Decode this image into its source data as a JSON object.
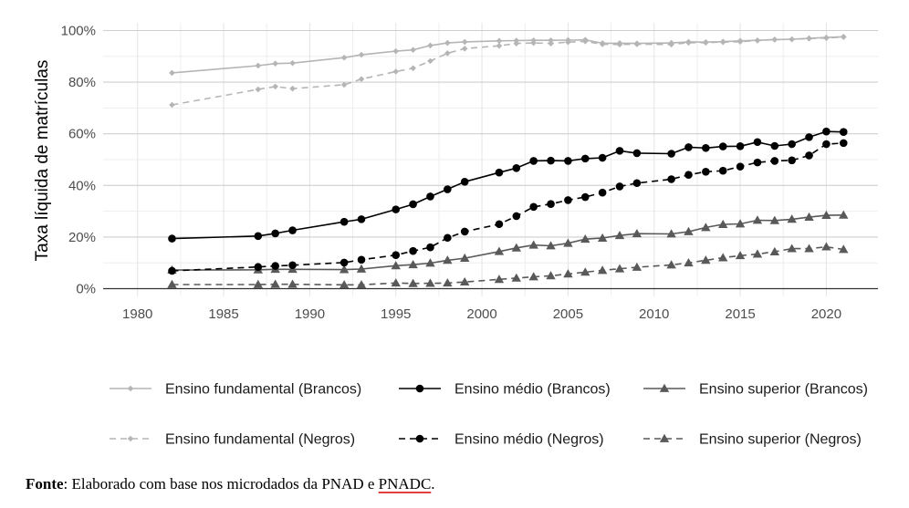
{
  "chart_data": {
    "type": "line",
    "title": "",
    "xlabel": "",
    "ylabel": "Taxa líquida de matrículas",
    "xlim": [
      1978,
      2023
    ],
    "ylim": [
      -3,
      103
    ],
    "xticks": [
      1980,
      1985,
      1990,
      1995,
      2000,
      2005,
      2010,
      2015,
      2020
    ],
    "yticks": [
      0,
      20,
      40,
      60,
      80,
      100
    ],
    "ytick_labels": [
      "0%",
      "20%",
      "40%",
      "60%",
      "80%",
      "100%"
    ],
    "legend_position": "bottom",
    "series": [
      {
        "name": "Ensino fundamental (Brancos)",
        "color": "#b5b5b5",
        "dash": "solid",
        "marker": "diamond",
        "x": [
          1982,
          1987,
          1988,
          1989,
          1992,
          1993,
          1995,
          1996,
          1997,
          1998,
          1999,
          2001,
          2002,
          2003,
          2004,
          2005,
          2006,
          2007,
          2008,
          2009,
          2011,
          2012,
          2013,
          2014,
          2015,
          2016,
          2017,
          2018,
          2019,
          2020,
          2021
        ],
        "y": [
          83.6,
          86.4,
          87.2,
          87.4,
          89.5,
          90.6,
          92.0,
          92.5,
          94.2,
          95.2,
          95.6,
          96.0,
          96.1,
          96.2,
          96.2,
          96.3,
          96.4,
          95.1,
          95.1,
          95.0,
          95.2,
          95.6,
          95.5,
          95.7,
          96.0,
          96.2,
          96.5,
          96.6,
          97.0,
          97.3,
          97.6
        ]
      },
      {
        "name": "Ensino médio (Brancos)",
        "color": "#000000",
        "dash": "solid",
        "marker": "circle",
        "x": [
          1982,
          1987,
          1988,
          1989,
          1992,
          1993,
          1995,
          1996,
          1997,
          1998,
          1999,
          2001,
          2002,
          2003,
          2004,
          2005,
          2006,
          2007,
          2008,
          2009,
          2011,
          2012,
          2013,
          2014,
          2015,
          2016,
          2017,
          2018,
          2019,
          2020,
          2021
        ],
        "y": [
          19.4,
          20.4,
          21.4,
          22.6,
          25.9,
          26.9,
          30.7,
          32.7,
          35.7,
          38.5,
          41.4,
          45.0,
          46.7,
          49.5,
          49.6,
          49.5,
          50.4,
          50.7,
          53.4,
          52.5,
          52.3,
          54.8,
          54.5,
          55.1,
          55.2,
          56.8,
          55.3,
          56.0,
          58.7,
          60.9,
          60.7
        ]
      },
      {
        "name": "Ensino superior (Brancos)",
        "color": "#595959",
        "dash": "solid",
        "marker": "triangle",
        "x": [
          1982,
          1987,
          1988,
          1989,
          1992,
          1993,
          1995,
          1996,
          1997,
          1998,
          1999,
          2001,
          2002,
          2003,
          2004,
          2005,
          2006,
          2007,
          2008,
          2009,
          2011,
          2012,
          2013,
          2014,
          2015,
          2016,
          2017,
          2018,
          2019,
          2020,
          2021
        ],
        "y": [
          7.2,
          7.3,
          7.5,
          7.5,
          7.4,
          7.6,
          8.9,
          9.3,
          9.9,
          11.0,
          11.8,
          14.4,
          15.8,
          16.9,
          16.6,
          17.6,
          19.2,
          19.6,
          20.6,
          21.3,
          21.2,
          22.1,
          23.7,
          24.9,
          25.1,
          26.5,
          26.4,
          26.9,
          27.7,
          28.4,
          28.5
        ]
      },
      {
        "name": "Ensino fundamental (Negros)",
        "color": "#b5b5b5",
        "dash": "dashed",
        "marker": "diamond",
        "x": [
          1982,
          1987,
          1988,
          1989,
          1992,
          1993,
          1995,
          1996,
          1997,
          1998,
          1999,
          2001,
          2002,
          2003,
          2004,
          2005,
          2006,
          2007,
          2008,
          2009,
          2011,
          2012,
          2013,
          2014,
          2015,
          2016,
          2017,
          2018,
          2019,
          2020,
          2021
        ],
        "y": [
          71.2,
          77.2,
          78.3,
          77.5,
          79.0,
          81.2,
          84.1,
          85.4,
          88.2,
          91.2,
          93.0,
          94.1,
          95.0,
          95.2,
          95.0,
          95.5,
          95.8,
          94.7,
          94.6,
          94.7,
          94.6,
          95.3,
          95.3,
          95.5,
          95.7,
          96.1,
          96.5,
          96.6,
          96.9,
          97.1,
          97.5
        ]
      },
      {
        "name": "Ensino médio (Negros)",
        "color": "#000000",
        "dash": "dashed",
        "marker": "circle",
        "x": [
          1982,
          1987,
          1988,
          1989,
          1992,
          1993,
          1995,
          1996,
          1997,
          1998,
          1999,
          2001,
          2002,
          2003,
          2004,
          2005,
          2006,
          2007,
          2008,
          2009,
          2011,
          2012,
          2013,
          2014,
          2015,
          2016,
          2017,
          2018,
          2019,
          2020,
          2021
        ],
        "y": [
          6.9,
          8.4,
          8.8,
          9.1,
          10.1,
          11.2,
          13.0,
          14.6,
          16.0,
          19.7,
          22.1,
          25.0,
          28.1,
          31.7,
          32.8,
          34.3,
          35.5,
          37.2,
          39.6,
          40.9,
          42.4,
          44.1,
          45.3,
          45.7,
          47.3,
          48.9,
          49.5,
          49.7,
          51.6,
          56.0,
          56.4
        ]
      },
      {
        "name": "Ensino superior (Negros)",
        "color": "#595959",
        "dash": "dashed",
        "marker": "triangle",
        "x": [
          1982,
          1987,
          1988,
          1989,
          1992,
          1993,
          1995,
          1996,
          1997,
          1998,
          1999,
          2001,
          2002,
          2003,
          2004,
          2005,
          2006,
          2007,
          2008,
          2009,
          2011,
          2012,
          2013,
          2014,
          2015,
          2016,
          2017,
          2018,
          2019,
          2020,
          2021
        ],
        "y": [
          1.6,
          1.6,
          1.7,
          1.7,
          1.5,
          1.5,
          2.2,
          2.0,
          2.1,
          2.2,
          2.6,
          3.6,
          4.1,
          4.6,
          5.0,
          5.7,
          6.4,
          7.1,
          7.7,
          8.3,
          9.2,
          10.0,
          11.0,
          12.0,
          12.8,
          13.4,
          14.3,
          15.5,
          15.5,
          16.2,
          15.2
        ]
      }
    ]
  },
  "source": {
    "label": "Fonte",
    "text_before": ": Elaborado com base nos microdados da PNAD e ",
    "link": "PNADC",
    "text_after": "."
  }
}
